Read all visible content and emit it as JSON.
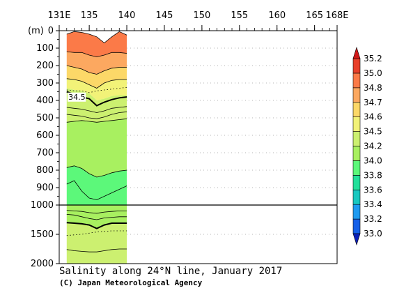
{
  "chart_data": {
    "type": "heatmap",
    "title": "Salinity along 24°N line, January 2017",
    "credit": "(C) Japan Meteorological Agency",
    "ylabel_unit": "(m)",
    "x_ticks": [
      {
        "value": 131,
        "label": "131E"
      },
      {
        "value": 135,
        "label": "135"
      },
      {
        "value": 140,
        "label": "140"
      },
      {
        "value": 145,
        "label": "145"
      },
      {
        "value": 150,
        "label": "150"
      },
      {
        "value": 155,
        "label": "155"
      },
      {
        "value": 160,
        "label": "160"
      },
      {
        "value": 165,
        "label": "165"
      },
      {
        "value": 168,
        "label": "168E"
      }
    ],
    "xlim": [
      131,
      168
    ],
    "y_ticks_upper": [
      0,
      100,
      200,
      300,
      400,
      500,
      600,
      700,
      800,
      900,
      1000
    ],
    "y_ticks_lower": [
      1500,
      2000
    ],
    "ylim": [
      0,
      2000
    ],
    "y_break": 1000,
    "data_xrange": [
      132,
      140
    ],
    "colorbar": {
      "levels": [
        "33.0",
        "33.2",
        "33.4",
        "33.6",
        "33.8",
        "34.0",
        "34.2",
        "34.5",
        "34.6",
        "34.7",
        "34.8",
        "35.0",
        "35.2"
      ],
      "colors": [
        "#0a1fb8",
        "#1560e8",
        "#1e9af0",
        "#18c8c0",
        "#22e09a",
        "#5cf87a",
        "#a8f060",
        "#ccf070",
        "#f2f278",
        "#fcd868",
        "#fca860",
        "#fb7a48",
        "#e8402a",
        "#d01818"
      ]
    },
    "layers": [
      {
        "level": "35.0",
        "color": "#fb7a48",
        "depths": [
          20,
          5,
          10,
          20,
          35,
          70,
          35,
          5,
          25
        ]
      },
      {
        "level": "34.8",
        "color": "#fca860",
        "depths": [
          120,
          125,
          125,
          140,
          150,
          140,
          125,
          125,
          130
        ]
      },
      {
        "level": "34.7",
        "color": "#fcd868",
        "depths": [
          200,
          210,
          220,
          240,
          250,
          230,
          215,
          210,
          210
        ]
      },
      {
        "level": "34.6",
        "color": "#f2f278",
        "depths": [
          275,
          280,
          290,
          310,
          330,
          300,
          285,
          280,
          280
        ]
      },
      {
        "level": "34.5",
        "color": "#ccf070",
        "depths": [
          330,
          340,
          345,
          360,
          400,
          390,
          375,
          370,
          370
        ]
      },
      {
        "level": "34.2",
        "color": "#a8f060",
        "depths": [
          525,
          520,
          515,
          520,
          525,
          520,
          515,
          510,
          505
        ]
      },
      {
        "level": "34.0",
        "color": "#5cf87a",
        "depths": [
          785,
          775,
          790,
          820,
          840,
          830,
          815,
          805,
          800
        ]
      },
      {
        "level": "34.2",
        "color": "#a8f060",
        "depths": [
          1000,
          1000,
          1000,
          1000,
          1000,
          1000,
          1000,
          1000,
          1000
        ]
      },
      {
        "level": "34.5",
        "color": "#ccf070",
        "depths": [
          1300,
          1310,
          1320,
          1340,
          1400,
          1340,
          1310,
          1310,
          1310
        ]
      },
      {
        "level": "34.6",
        "color": "#f2f278",
        "depths": [
          2000,
          2000,
          2000,
          2000,
          2000,
          2000,
          2000,
          2000,
          2000
        ]
      }
    ],
    "contours": [
      {
        "level": "35.0",
        "bold": false,
        "dotted": false,
        "depths": [
          20,
          5,
          10,
          20,
          35,
          70,
          35,
          5,
          25
        ]
      },
      {
        "level": "34.8",
        "bold": false,
        "dotted": false,
        "depths": [
          120,
          125,
          125,
          140,
          150,
          140,
          125,
          125,
          130
        ]
      },
      {
        "level": "34.7",
        "bold": false,
        "dotted": false,
        "depths": [
          200,
          210,
          220,
          240,
          250,
          230,
          215,
          210,
          210
        ]
      },
      {
        "level": "34.6",
        "bold": false,
        "dotted": false,
        "depths": [
          275,
          280,
          290,
          310,
          330,
          300,
          285,
          280,
          280
        ]
      },
      {
        "level": "34.55",
        "bold": false,
        "dotted": true,
        "depths": [
          340,
          345,
          345,
          355,
          345,
          340,
          335,
          330,
          325
        ]
      },
      {
        "level": "34.5",
        "bold": true,
        "dotted": false,
        "depths": [
          350,
          365,
          380,
          390,
          430,
          410,
          395,
          385,
          380
        ]
      },
      {
        "level": "34.4",
        "bold": false,
        "dotted": false,
        "depths": [
          440,
          445,
          450,
          460,
          470,
          460,
          445,
          440,
          435
        ]
      },
      {
        "level": "34.3",
        "bold": false,
        "dotted": false,
        "depths": [
          480,
          485,
          490,
          500,
          505,
          495,
          480,
          470,
          465
        ]
      },
      {
        "level": "34.2",
        "bold": false,
        "dotted": false,
        "depths": [
          525,
          520,
          515,
          520,
          525,
          520,
          515,
          510,
          505
        ]
      },
      {
        "level": "34.0",
        "bold": false,
        "dotted": false,
        "depths": [
          785,
          775,
          790,
          820,
          840,
          830,
          815,
          805,
          800
        ]
      },
      {
        "level": "34.1",
        "bold": false,
        "dotted": false,
        "depths": [
          880,
          860,
          920,
          960,
          970,
          950,
          930,
          910,
          890
        ]
      },
      {
        "level": "34.3",
        "bold": false,
        "dotted": false,
        "depths": [
          1090,
          1100,
          1110,
          1130,
          1140,
          1120,
          1110,
          1100,
          1100
        ]
      },
      {
        "level": "34.4",
        "bold": false,
        "dotted": false,
        "depths": [
          1160,
          1170,
          1200,
          1230,
          1250,
          1220,
          1210,
          1200,
          1200
        ]
      },
      {
        "level": "34.5",
        "bold": true,
        "dotted": false,
        "depths": [
          1300,
          1310,
          1320,
          1340,
          1400,
          1340,
          1310,
          1310,
          1310
        ]
      },
      {
        "level": "34.55",
        "bold": false,
        "dotted": true,
        "depths": [
          1520,
          1510,
          1500,
          1480,
          1460,
          1450,
          1440,
          1440,
          1440
        ]
      },
      {
        "level": "34.6",
        "bold": false,
        "dotted": false,
        "depths": [
          1760,
          1780,
          1790,
          1800,
          1800,
          1780,
          1760,
          1750,
          1750
        ]
      }
    ],
    "annotations": [
      {
        "text": "34.5",
        "x": 132.5,
        "depth": 395
      }
    ],
    "grid": "dotted"
  }
}
